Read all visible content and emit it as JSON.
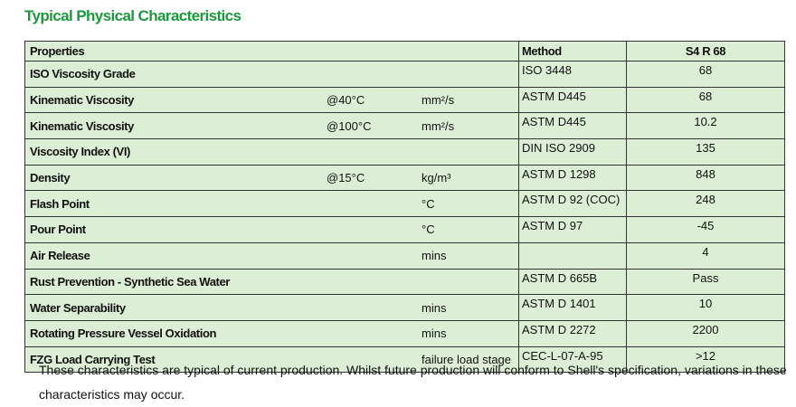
{
  "title": "Typical Physical Characteristics",
  "table": {
    "header": [
      "Properties",
      "Method",
      "S4 R 68"
    ],
    "rows": [
      [
        "ISO Viscosity Grade",
        null,
        null,
        "ISO 3448",
        "68"
      ],
      [
        "Kinematic Viscosity",
        "@40°C",
        "mm²/s",
        "ASTM D445",
        "68"
      ],
      [
        "Kinematic Viscosity",
        "@100°C",
        "mm²/s",
        "ASTM D445",
        "10.2"
      ],
      [
        "Viscosity Index (VI)",
        null,
        null,
        "DIN ISO 2909",
        "135"
      ],
      [
        "Density",
        "@15°C",
        "kg/m³",
        "ASTM D 1298",
        "848"
      ],
      [
        "Flash Point",
        null,
        "°C",
        "ASTM D 92 (COC)",
        "248"
      ],
      [
        "Pour Point",
        null,
        "°C",
        "ASTM D 97",
        "-45"
      ],
      [
        "Air Release",
        null,
        "mins",
        null,
        "4"
      ],
      [
        "Rust Prevention - Synthetic Sea Water",
        null,
        null,
        "ASTM D 665B",
        "Pass"
      ],
      [
        "Water Separability",
        null,
        "mins",
        "ASTM D 1401",
        "10"
      ],
      [
        "Rotating Pressure Vessel Oxidation",
        null,
        "mins",
        "ASTM D 2272",
        "2200"
      ],
      [
        "FZG Load Carrying Test",
        null,
        "failure load stage",
        "CEC-L-07-A-95",
        ">12"
      ]
    ]
  },
  "note": "These characteristics are typical of current production. Whilst future production will conform to Shell's specification, variations in these characteristics may occur."
}
